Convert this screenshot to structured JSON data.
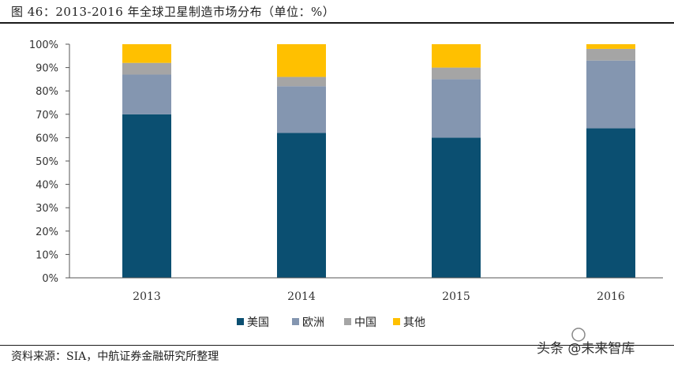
{
  "figure": {
    "title": "图 46：2013-2016 年全球卫星制造市场分布（单位：%）",
    "source": "资料来源：SIA，中航证券金融研究所整理"
  },
  "chart_data": {
    "type": "bar",
    "stacked": true,
    "categories": [
      "2013",
      "2014",
      "2015",
      "2016"
    ],
    "series": [
      {
        "name": "美国",
        "values": [
          70,
          62,
          60,
          64
        ],
        "color": "#0b4f71"
      },
      {
        "name": "欧洲",
        "values": [
          17,
          20,
          25,
          29
        ],
        "color": "#8496b0"
      },
      {
        "name": "中国",
        "values": [
          5,
          4,
          5,
          5
        ],
        "color": "#a5a5a5"
      },
      {
        "name": "其他",
        "values": [
          8,
          14,
          10,
          2
        ],
        "color": "#ffc000"
      }
    ],
    "yticks": [
      "0%",
      "10%",
      "20%",
      "30%",
      "40%",
      "50%",
      "60%",
      "70%",
      "80%",
      "90%",
      "100%"
    ],
    "ylim": [
      0,
      100
    ],
    "legend_position": "bottom",
    "grid": false
  },
  "watermark": {
    "text": "头条 @未来智库"
  }
}
